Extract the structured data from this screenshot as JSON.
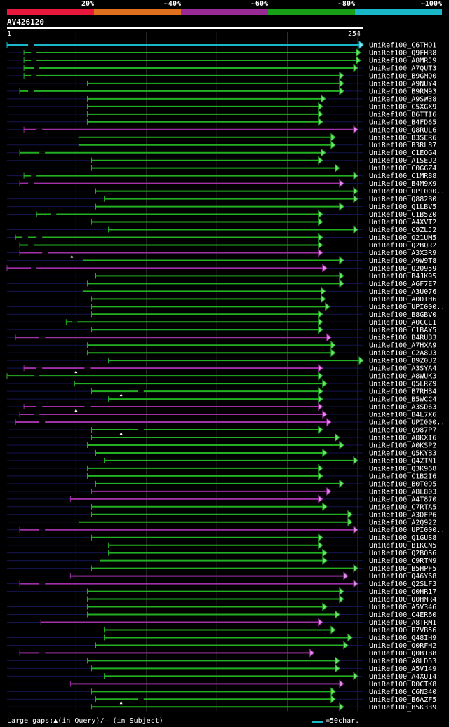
{
  "legend": {
    "items": [
      {
        "label": "20%",
        "color": "#e8173c"
      },
      {
        "label": "~40%",
        "color": "#e0701e"
      },
      {
        "label": "~60%",
        "color": "#9a2a96"
      },
      {
        "label": "~80%",
        "color": "#18a018"
      },
      {
        "label": "~100%",
        "color": "#18b8c8"
      }
    ]
  },
  "query": {
    "name": "AV426120",
    "length": 254,
    "start_label": "1",
    "end_label": "254"
  },
  "footer": {
    "gaps_text": "Large gaps:▲(in Query)/– (in Subject)",
    "scale_text": "=50char.",
    "scale_color": "#18b8c8"
  },
  "chart_data": {
    "type": "alignment-overview",
    "x_range": [
      1,
      254
    ],
    "gridlines_at": [
      50,
      100,
      150,
      200,
      250
    ],
    "hits": [
      {
        "name": "UniRef100_C6THO1",
        "start": 1,
        "end": 254,
        "color": "cyan",
        "gap_at": [
          18
        ]
      },
      {
        "name": "UniRef100_Q9FHR8",
        "start": 13,
        "end": 252,
        "color": "green",
        "gap_at": [
          20
        ]
      },
      {
        "name": "UniRef100_A8MRJ9",
        "start": 13,
        "end": 252,
        "color": "green",
        "gap_at": [
          20
        ]
      },
      {
        "name": "UniRef100_A7QUT3",
        "start": 13,
        "end": 250,
        "color": "green",
        "gap_at": [
          22
        ]
      },
      {
        "name": "UniRef100_B9GMQ0",
        "start": 13,
        "end": 240,
        "color": "green",
        "gap_at": [
          20
        ]
      },
      {
        "name": "UniRef100_A9NUY4",
        "start": 58,
        "end": 240,
        "color": "green"
      },
      {
        "name": "UniRef100_B9RM93",
        "start": 10,
        "end": 240,
        "color": "green",
        "gap_at": [
          18
        ]
      },
      {
        "name": "UniRef100_A9SW38",
        "start": 58,
        "end": 227,
        "color": "green"
      },
      {
        "name": "UniRef100_C5XGX9",
        "start": 58,
        "end": 225,
        "color": "green"
      },
      {
        "name": "UniRef100_B6TTI6",
        "start": 58,
        "end": 225,
        "color": "green"
      },
      {
        "name": "UniRef100_B4FD65",
        "start": 58,
        "end": 225,
        "color": "green"
      },
      {
        "name": "UniRef100_Q8RUL6",
        "start": 13,
        "end": 250,
        "color": "purple",
        "gap_at": [
          24
        ]
      },
      {
        "name": "UniRef100_B3SER6",
        "start": 52,
        "end": 234,
        "color": "green"
      },
      {
        "name": "UniRef100_B3RL87",
        "start": 52,
        "end": 234,
        "color": "green"
      },
      {
        "name": "UniRef100_C1EOG4",
        "start": 10,
        "end": 227,
        "color": "green",
        "gap_at": [
          26
        ]
      },
      {
        "name": "UniRef100_A1SEU2",
        "start": 61,
        "end": 225,
        "color": "green"
      },
      {
        "name": "UniRef100_C0GGZ4",
        "start": 61,
        "end": 237,
        "color": "green"
      },
      {
        "name": "UniRef100_C1MR88",
        "start": 13,
        "end": 250,
        "color": "green",
        "gap_at": [
          20
        ]
      },
      {
        "name": "UniRef100_B4M9X9",
        "start": 10,
        "end": 240,
        "color": "purple",
        "gap_at": [
          18
        ]
      },
      {
        "name": "UniRef100_UPI000..",
        "start": 64,
        "end": 250,
        "color": "green"
      },
      {
        "name": "UniRef100_Q882B0",
        "start": 70,
        "end": 250,
        "color": "green"
      },
      {
        "name": "UniRef100_Q1LBV5",
        "start": 64,
        "end": 240,
        "color": "green"
      },
      {
        "name": "UniRef100_C1B5Z0",
        "start": 22,
        "end": 225,
        "color": "green",
        "gap_at": [
          34
        ]
      },
      {
        "name": "UniRef100_A4XVT2",
        "start": 61,
        "end": 225,
        "color": "green"
      },
      {
        "name": "UniRef100_C9ZLJ2",
        "start": 73,
        "end": 250,
        "color": "green"
      },
      {
        "name": "UniRef100_Q21UM5",
        "start": 7,
        "end": 225,
        "color": "green",
        "gap_at": [
          14,
          24
        ]
      },
      {
        "name": "UniRef100_Q2BQR2",
        "start": 10,
        "end": 225,
        "color": "green",
        "gap_at": [
          18
        ]
      },
      {
        "name": "UniRef100_A3X3R9",
        "start": 10,
        "end": 225,
        "color": "purple",
        "gap_at": [
          28
        ],
        "query_gap_at": [
          47
        ]
      },
      {
        "name": "UniRef100_A9W9T8",
        "start": 55,
        "end": 240,
        "color": "green"
      },
      {
        "name": "UniRef100_Q20959",
        "start": 1,
        "end": 228,
        "color": "purple",
        "gap_at": [
          20
        ]
      },
      {
        "name": "UniRef100_B4JK95",
        "start": 64,
        "end": 240,
        "color": "green"
      },
      {
        "name": "UniRef100_A6F7E7",
        "start": 58,
        "end": 240,
        "color": "green"
      },
      {
        "name": "UniRef100_A3U076",
        "start": 55,
        "end": 227,
        "color": "green"
      },
      {
        "name": "UniRef100_A0DTH6",
        "start": 61,
        "end": 227,
        "color": "green"
      },
      {
        "name": "UniRef100_UPI000..",
        "start": 61,
        "end": 230,
        "color": "green"
      },
      {
        "name": "UniRef100_B8GBV0",
        "start": 61,
        "end": 225,
        "color": "green"
      },
      {
        "name": "UniRef100_A0CCL1",
        "start": 43,
        "end": 225,
        "color": "green",
        "gap_at": [
          49
        ]
      },
      {
        "name": "UniRef100_C1BAY5",
        "start": 61,
        "end": 225,
        "color": "green"
      },
      {
        "name": "UniRef100_B4RUB3",
        "start": 7,
        "end": 231,
        "color": "purple",
        "gap_at": [
          26
        ]
      },
      {
        "name": "UniRef100_A7HXA9",
        "start": 58,
        "end": 234,
        "color": "green"
      },
      {
        "name": "UniRef100_C2A8U3",
        "start": 58,
        "end": 234,
        "color": "green"
      },
      {
        "name": "UniRef100_B9Z0U2",
        "start": 73,
        "end": 254,
        "color": "green"
      },
      {
        "name": "UniRef100_A3SYA4",
        "start": 13,
        "end": 225,
        "color": "purple",
        "gap_at": [
          24,
          58
        ],
        "query_gap_at": [
          50
        ]
      },
      {
        "name": "UniRef100_A8WUK3",
        "start": 1,
        "end": 225,
        "color": "green",
        "gap_at": [
          22
        ]
      },
      {
        "name": "UniRef100_Q5LRZ9",
        "start": 49,
        "end": 228,
        "color": "green"
      },
      {
        "name": "UniRef100_B7RHB4",
        "start": 61,
        "end": 225,
        "color": "green",
        "gap_at": [
          96
        ],
        "query_gap_at": [
          82
        ]
      },
      {
        "name": "UniRef100_B5WCC4",
        "start": 73,
        "end": 225,
        "color": "green"
      },
      {
        "name": "UniRef100_A3SD63",
        "start": 13,
        "end": 225,
        "color": "purple",
        "gap_at": [
          24,
          58
        ],
        "query_gap_at": [
          50
        ]
      },
      {
        "name": "UniRef100_B4L7X6",
        "start": 10,
        "end": 228,
        "color": "purple",
        "gap_at": [
          22
        ]
      },
      {
        "name": "UniRef100_UPI000..",
        "start": 7,
        "end": 231,
        "color": "purple",
        "gap_at": [
          26
        ]
      },
      {
        "name": "UniRef100_Q987P7",
        "start": 61,
        "end": 225,
        "color": "green",
        "gap_at": [
          96
        ],
        "query_gap_at": [
          82
        ]
      },
      {
        "name": "UniRef100_A8KXI6",
        "start": 61,
        "end": 237,
        "color": "green"
      },
      {
        "name": "UniRef100_A0KSP2",
        "start": 58,
        "end": 240,
        "color": "green"
      },
      {
        "name": "UniRef100_Q5KYB3",
        "start": 64,
        "end": 228,
        "color": "green"
      },
      {
        "name": "UniRef100_Q4ZTN1",
        "start": 70,
        "end": 250,
        "color": "green"
      },
      {
        "name": "UniRef100_Q3K968",
        "start": 58,
        "end": 225,
        "color": "green"
      },
      {
        "name": "UniRef100_C1B2I6",
        "start": 58,
        "end": 225,
        "color": "green"
      },
      {
        "name": "UniRef100_B0T095",
        "start": 64,
        "end": 240,
        "color": "green"
      },
      {
        "name": "UniRef100_A8L803",
        "start": 61,
        "end": 231,
        "color": "purple"
      },
      {
        "name": "UniRef100_A4T870",
        "start": 46,
        "end": 225,
        "color": "purple"
      },
      {
        "name": "UniRef100_C7RTA5",
        "start": 61,
        "end": 228,
        "color": "green"
      },
      {
        "name": "UniRef100_A3DFP6",
        "start": 61,
        "end": 246,
        "color": "green"
      },
      {
        "name": "UniRef100_A2Q922",
        "start": 52,
        "end": 246,
        "color": "green"
      },
      {
        "name": "UniRef100_UPI000..",
        "start": 10,
        "end": 250,
        "color": "purple",
        "gap_at": [
          26
        ]
      },
      {
        "name": "UniRef100_Q1GUS8",
        "start": 61,
        "end": 225,
        "color": "green"
      },
      {
        "name": "UniRef100_B1KCN5",
        "start": 73,
        "end": 225,
        "color": "green"
      },
      {
        "name": "UniRef100_Q2BQS6",
        "start": 73,
        "end": 228,
        "color": "green"
      },
      {
        "name": "UniRef100_C9RTN9",
        "start": 67,
        "end": 228,
        "color": "green"
      },
      {
        "name": "UniRef100_B5HPF5",
        "start": 61,
        "end": 250,
        "color": "green"
      },
      {
        "name": "UniRef100_Q46Y68",
        "start": 46,
        "end": 243,
        "color": "purple"
      },
      {
        "name": "UniRef100_Q2SLF3",
        "start": 10,
        "end": 250,
        "color": "purple",
        "gap_at": [
          26
        ]
      },
      {
        "name": "UniRef100_Q0HR17",
        "start": 58,
        "end": 240,
        "color": "green"
      },
      {
        "name": "UniRef100_Q0HMR4",
        "start": 58,
        "end": 240,
        "color": "green"
      },
      {
        "name": "UniRef100_A5V346",
        "start": 58,
        "end": 228,
        "color": "green"
      },
      {
        "name": "UniRef100_C4ER60",
        "start": 58,
        "end": 237,
        "color": "green"
      },
      {
        "name": "UniRef100_A8TRM1",
        "start": 25,
        "end": 225,
        "color": "purple"
      },
      {
        "name": "UniRef100_B7VB56",
        "start": 70,
        "end": 234,
        "color": "green"
      },
      {
        "name": "UniRef100_Q48IH9",
        "start": 70,
        "end": 246,
        "color": "green"
      },
      {
        "name": "UniRef100_Q0RFH2",
        "start": 64,
        "end": 243,
        "color": "green"
      },
      {
        "name": "UniRef100_Q0B1B8",
        "start": 10,
        "end": 219,
        "color": "purple",
        "gap_at": [
          26
        ]
      },
      {
        "name": "UniRef100_A8LD53",
        "start": 58,
        "end": 237,
        "color": "green"
      },
      {
        "name": "UniRef100_A5V149",
        "start": 61,
        "end": 237,
        "color": "green"
      },
      {
        "name": "UniRef100_A4XU14",
        "start": 70,
        "end": 250,
        "color": "green"
      },
      {
        "name": "UniRef100_D0CTK8",
        "start": 46,
        "end": 240,
        "color": "purple"
      },
      {
        "name": "UniRef100_C6N340",
        "start": 61,
        "end": 234,
        "color": "green"
      },
      {
        "name": "UniRef100_B6AZF5",
        "start": 64,
        "end": 234,
        "color": "green",
        "gap_at": [
          96
        ],
        "query_gap_at": [
          82
        ]
      },
      {
        "name": "UniRef100_B5K339",
        "start": 61,
        "end": 240,
        "color": "green"
      }
    ]
  }
}
